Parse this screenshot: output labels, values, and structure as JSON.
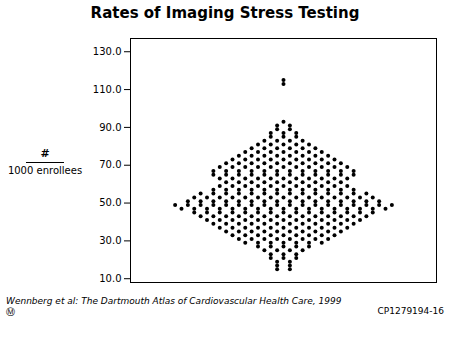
{
  "chart_data": {
    "type": "dot",
    "title": "Rates of Imaging Stress Testing",
    "ylabel": [
      "#",
      "1000 enrollees"
    ],
    "annotations": [
      "Wennberg et al: The Dartmouth Atlas of Cardiovascular Health Care, 1999",
      "CP1279194-16",
      "Ⓜ"
    ],
    "values": [
      115,
      113,
      93,
      91,
      89,
      87,
      85,
      83,
      81,
      79,
      77,
      75,
      73,
      71,
      69,
      67,
      65,
      63,
      61,
      59,
      57,
      55,
      53,
      51,
      49,
      47,
      45,
      43,
      41,
      39,
      37,
      35,
      33,
      31,
      29,
      27,
      25,
      23,
      21,
      19,
      17,
      15
    ],
    "counts": [
      1,
      1,
      1,
      2,
      2,
      3,
      3,
      4,
      5,
      6,
      7,
      8,
      9,
      10,
      11,
      12,
      12,
      11,
      10,
      11,
      12,
      14,
      15,
      16,
      18,
      17,
      15,
      14,
      13,
      12,
      11,
      10,
      9,
      8,
      7,
      5,
      4,
      3,
      3,
      2,
      2,
      2
    ],
    "ylim": [
      8.0,
      137.0
    ],
    "yticks": [
      {
        "value": 10.0,
        "label": "10.0"
      },
      {
        "value": 30.0,
        "label": "30.0"
      },
      {
        "value": 50.0,
        "label": "50.0"
      },
      {
        "value": 70.0,
        "label": "70.0"
      },
      {
        "value": 90.0,
        "label": "90.0"
      },
      {
        "value": 110.0,
        "label": "110.0"
      },
      {
        "value": 130.0,
        "label": "130.0"
      }
    ],
    "grid": false,
    "tick_labels": "y"
  }
}
